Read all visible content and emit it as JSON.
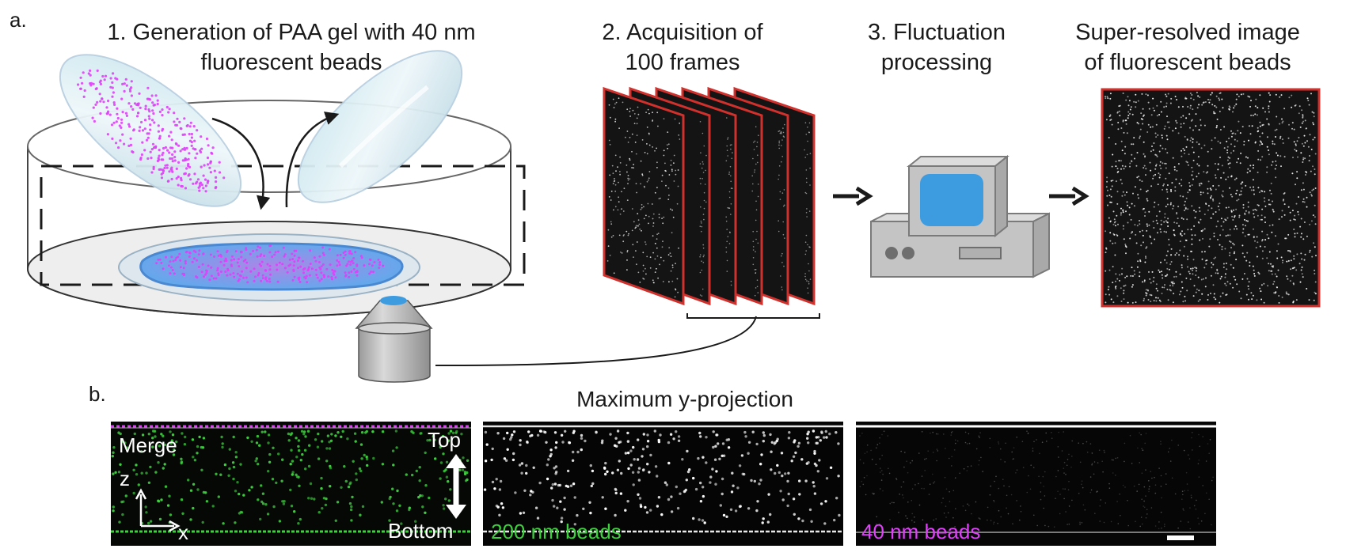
{
  "panel_a": {
    "letter": "a.",
    "step1": {
      "line1": "1. Generation of PAA gel with 40 nm",
      "line2": "fluorescent beads"
    },
    "step2": {
      "line1": "2. Acquisition of",
      "line2": "100 frames"
    },
    "step3": {
      "line1": "3. Fluctuation",
      "line2": "processing"
    },
    "step4": {
      "line1": "Super-resolved image",
      "line2": "of fluorescent beads"
    }
  },
  "panel_b": {
    "letter": "b.",
    "title": "Maximum y-projection",
    "merge_label": "Merge",
    "axis_z": "z",
    "axis_x": "x",
    "top_label": "Top",
    "bottom_label": "Bottom",
    "beads_200_label": "200 nm beads",
    "beads_40_label": "40 nm beads"
  },
  "colors": {
    "magenta": "#e040fb",
    "green": "#3ed13e",
    "frame_red": "#d0312d",
    "screen_blue": "#3d9be0",
    "gel_blue": "#4aa8ec",
    "computer_gray": "#c4c4c4"
  }
}
